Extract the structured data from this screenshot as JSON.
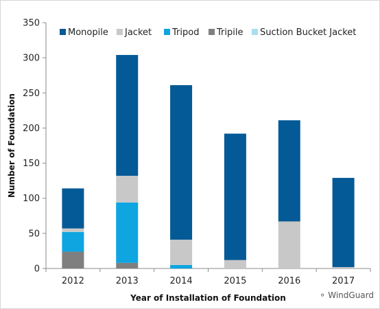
{
  "chart_data": {
    "type": "bar",
    "stacked": true,
    "categories": [
      "2012",
      "2013",
      "2014",
      "2015",
      "2016",
      "2017"
    ],
    "series": [
      {
        "name": "Tripile",
        "color": "#7f7f7f",
        "values": [
          24,
          8,
          0,
          0,
          0,
          0
        ]
      },
      {
        "name": "Tripod",
        "color": "#0ea5e1",
        "values": [
          28,
          86,
          5,
          0,
          0,
          0
        ]
      },
      {
        "name": "Suction Bucket Jacket",
        "color": "#a9def3",
        "values": [
          0,
          0,
          0,
          0,
          0,
          0
        ]
      },
      {
        "name": "Jacket",
        "color": "#c8c8c8",
        "values": [
          5,
          38,
          36,
          12,
          67,
          2
        ]
      },
      {
        "name": "Monopile",
        "color": "#045a96",
        "values": [
          57,
          172,
          220,
          180,
          144,
          127
        ]
      }
    ],
    "legend_order": [
      "Monopile",
      "Jacket",
      "Tripod",
      "Tripile",
      "Suction Bucket Jacket"
    ],
    "legend_placement": "top",
    "xlabel": "Year of  Installation of Foundation",
    "ylabel": "Number of Foundation",
    "ylim": [
      0,
      350
    ],
    "yticks": [
      0,
      50,
      100,
      150,
      200,
      250,
      300,
      350
    ],
    "grid": false
  },
  "watermark": {
    "text": "WindGuard",
    "icon": "wechat-icon"
  }
}
